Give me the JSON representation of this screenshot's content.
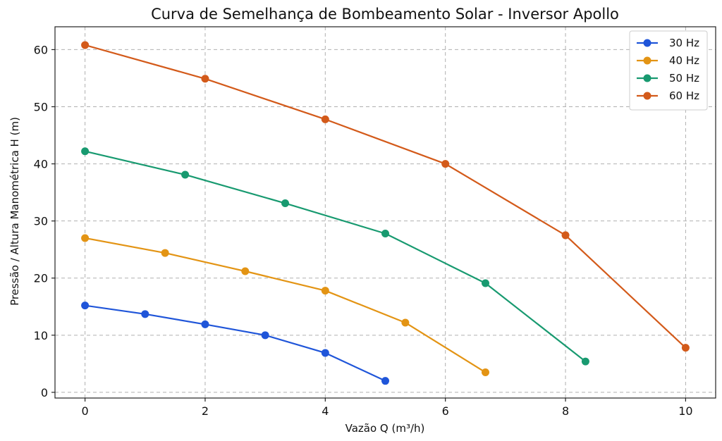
{
  "chart_data": {
    "type": "line",
    "title": "Curva de Semelhança de Bombeamento Solar - Inversor Apollo",
    "xlabel": "Vazão Q (m³/h)",
    "ylabel": "Pressão / Altura Manométrica H (m)",
    "xlim": [
      -0.5,
      10.5
    ],
    "ylim": [
      -1,
      64
    ],
    "xticks": [
      0,
      2,
      4,
      6,
      8,
      10
    ],
    "yticks": [
      0,
      10,
      20,
      30,
      40,
      50,
      60
    ],
    "grid": true,
    "legend_position": "top-right",
    "series": [
      {
        "name": "30 Hz",
        "color": "#1f55d9",
        "x": [
          0,
          1,
          2,
          3,
          4,
          5
        ],
        "y": [
          15.2,
          13.7,
          11.9,
          10.0,
          6.9,
          2.0
        ]
      },
      {
        "name": "40 Hz",
        "color": "#e39414",
        "x": [
          0,
          1.333,
          2.667,
          4,
          5.333,
          6.667
        ],
        "y": [
          27.0,
          24.4,
          21.2,
          17.8,
          12.2,
          3.5
        ]
      },
      {
        "name": "50 Hz",
        "color": "#189a70",
        "x": [
          0,
          1.667,
          3.333,
          5,
          6.667,
          8.333
        ],
        "y": [
          42.2,
          38.1,
          33.1,
          27.8,
          19.1,
          5.4
        ]
      },
      {
        "name": "60 Hz",
        "color": "#d35a1a",
        "x": [
          0,
          2,
          4,
          6,
          8,
          10
        ],
        "y": [
          60.8,
          54.9,
          47.8,
          40.0,
          27.5,
          7.8
        ]
      }
    ]
  }
}
